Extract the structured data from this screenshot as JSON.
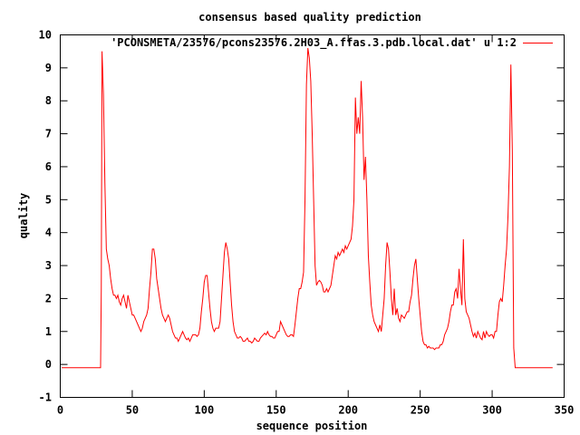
{
  "chart_data": {
    "type": "line",
    "title": "consensus based quality prediction",
    "xlabel": "sequence position",
    "ylabel": "quality",
    "xlim": [
      0,
      350
    ],
    "ylim": [
      -1,
      10
    ],
    "x_ticks": [
      0,
      50,
      100,
      150,
      200,
      250,
      300,
      350
    ],
    "y_ticks": [
      -1,
      0,
      1,
      2,
      3,
      4,
      5,
      6,
      7,
      8,
      9,
      10
    ],
    "grid": false,
    "legend_position": "top-right",
    "series": [
      {
        "name": "'PCONSMETA/23576/pcons23576.2H03_A.ffas.3.pdb.local.dat' u 1:2",
        "color": "#ff0000",
        "points": [
          [
            1,
            -0.1
          ],
          [
            28,
            -0.1
          ],
          [
            28.5,
            2.3
          ],
          [
            29,
            9.5
          ],
          [
            30,
            8.2
          ],
          [
            31,
            5.5
          ],
          [
            32,
            3.5
          ],
          [
            33,
            3.2
          ],
          [
            34,
            3.0
          ],
          [
            35,
            2.6
          ],
          [
            36,
            2.3
          ],
          [
            37,
            2.1
          ],
          [
            38,
            2.1
          ],
          [
            39,
            2.0
          ],
          [
            40,
            2.1
          ],
          [
            41,
            1.9
          ],
          [
            42,
            1.8
          ],
          [
            43,
            2.0
          ],
          [
            44,
            2.1
          ],
          [
            45,
            1.9
          ],
          [
            46,
            1.7
          ],
          [
            47,
            2.1
          ],
          [
            48,
            1.9
          ],
          [
            49,
            1.7
          ],
          [
            50,
            1.5
          ],
          [
            51,
            1.5
          ],
          [
            52,
            1.4
          ],
          [
            53,
            1.3
          ],
          [
            54,
            1.2
          ],
          [
            55,
            1.1
          ],
          [
            56,
            1.0
          ],
          [
            57,
            1.1
          ],
          [
            58,
            1.3
          ],
          [
            59,
            1.4
          ],
          [
            60,
            1.5
          ],
          [
            61,
            1.7
          ],
          [
            62,
            2.3
          ],
          [
            63,
            2.8
          ],
          [
            64,
            3.5
          ],
          [
            65,
            3.5
          ],
          [
            66,
            3.2
          ],
          [
            67,
            2.6
          ],
          [
            68,
            2.3
          ],
          [
            69,
            2.0
          ],
          [
            70,
            1.7
          ],
          [
            71,
            1.5
          ],
          [
            72,
            1.4
          ],
          [
            73,
            1.3
          ],
          [
            74,
            1.4
          ],
          [
            75,
            1.5
          ],
          [
            76,
            1.4
          ],
          [
            77,
            1.2
          ],
          [
            78,
            1.0
          ],
          [
            79,
            0.9
          ],
          [
            80,
            0.8
          ],
          [
            81,
            0.8
          ],
          [
            82,
            0.7
          ],
          [
            83,
            0.8
          ],
          [
            84,
            0.9
          ],
          [
            85,
            1.0
          ],
          [
            86,
            0.9
          ],
          [
            87,
            0.8
          ],
          [
            88,
            0.75
          ],
          [
            89,
            0.8
          ],
          [
            90,
            0.7
          ],
          [
            91,
            0.8
          ],
          [
            92,
            0.9
          ],
          [
            93,
            0.9
          ],
          [
            94,
            0.9
          ],
          [
            95,
            0.85
          ],
          [
            96,
            0.9
          ],
          [
            97,
            1.1
          ],
          [
            98,
            1.6
          ],
          [
            99,
            2.0
          ],
          [
            100,
            2.5
          ],
          [
            101,
            2.7
          ],
          [
            102,
            2.7
          ],
          [
            103,
            2.2
          ],
          [
            104,
            1.7
          ],
          [
            105,
            1.3
          ],
          [
            106,
            1.1
          ],
          [
            107,
            1.0
          ],
          [
            108,
            1.1
          ],
          [
            109,
            1.1
          ],
          [
            110,
            1.1
          ],
          [
            111,
            1.3
          ],
          [
            112,
            2.0
          ],
          [
            113,
            2.7
          ],
          [
            114,
            3.4
          ],
          [
            115,
            3.7
          ],
          [
            116,
            3.5
          ],
          [
            117,
            3.2
          ],
          [
            118,
            2.5
          ],
          [
            119,
            1.8
          ],
          [
            120,
            1.3
          ],
          [
            121,
            1.0
          ],
          [
            122,
            0.9
          ],
          [
            123,
            0.8
          ],
          [
            124,
            0.8
          ],
          [
            125,
            0.85
          ],
          [
            126,
            0.8
          ],
          [
            127,
            0.7
          ],
          [
            128,
            0.7
          ],
          [
            129,
            0.75
          ],
          [
            130,
            0.8
          ],
          [
            131,
            0.7
          ],
          [
            132,
            0.7
          ],
          [
            133,
            0.65
          ],
          [
            134,
            0.7
          ],
          [
            135,
            0.8
          ],
          [
            136,
            0.75
          ],
          [
            137,
            0.7
          ],
          [
            138,
            0.7
          ],
          [
            139,
            0.8
          ],
          [
            140,
            0.85
          ],
          [
            141,
            0.9
          ],
          [
            142,
            0.95
          ],
          [
            143,
            0.9
          ],
          [
            144,
            1.0
          ],
          [
            145,
            0.9
          ],
          [
            146,
            0.85
          ],
          [
            147,
            0.85
          ],
          [
            148,
            0.8
          ],
          [
            149,
            0.8
          ],
          [
            150,
            0.9
          ],
          [
            151,
            1.0
          ],
          [
            152,
            1.0
          ],
          [
            153,
            1.3
          ],
          [
            154,
            1.2
          ],
          [
            155,
            1.1
          ],
          [
            156,
            1.0
          ],
          [
            157,
            0.9
          ],
          [
            158,
            0.85
          ],
          [
            159,
            0.85
          ],
          [
            160,
            0.9
          ],
          [
            161,
            0.9
          ],
          [
            162,
            0.85
          ],
          [
            163,
            1.2
          ],
          [
            164,
            1.6
          ],
          [
            165,
            2.0
          ],
          [
            166,
            2.3
          ],
          [
            167,
            2.3
          ],
          [
            168,
            2.5
          ],
          [
            169,
            2.8
          ],
          [
            170,
            5.0
          ],
          [
            171,
            8.5
          ],
          [
            172,
            9.6
          ],
          [
            173,
            9.3
          ],
          [
            174,
            8.6
          ],
          [
            175,
            7.0
          ],
          [
            176,
            5.0
          ],
          [
            177,
            3.0
          ],
          [
            178,
            2.4
          ],
          [
            179,
            2.5
          ],
          [
            180,
            2.55
          ],
          [
            181,
            2.5
          ],
          [
            182,
            2.4
          ],
          [
            183,
            2.2
          ],
          [
            184,
            2.2
          ],
          [
            185,
            2.3
          ],
          [
            186,
            2.2
          ],
          [
            187,
            2.3
          ],
          [
            188,
            2.4
          ],
          [
            189,
            2.7
          ],
          [
            190,
            3.0
          ],
          [
            191,
            3.3
          ],
          [
            192,
            3.2
          ],
          [
            193,
            3.4
          ],
          [
            194,
            3.3
          ],
          [
            195,
            3.4
          ],
          [
            196,
            3.5
          ],
          [
            197,
            3.4
          ],
          [
            198,
            3.6
          ],
          [
            199,
            3.5
          ],
          [
            200,
            3.6
          ],
          [
            201,
            3.7
          ],
          [
            202,
            3.8
          ],
          [
            203,
            4.2
          ],
          [
            204,
            5.0
          ],
          [
            205,
            8.1
          ],
          [
            206,
            7.0
          ],
          [
            207,
            7.5
          ],
          [
            208,
            7.0
          ],
          [
            209,
            8.6
          ],
          [
            210,
            7.5
          ],
          [
            211,
            5.6
          ],
          [
            212,
            6.3
          ],
          [
            213,
            5.0
          ],
          [
            214,
            3.3
          ],
          [
            215,
            2.5
          ],
          [
            216,
            1.8
          ],
          [
            217,
            1.5
          ],
          [
            218,
            1.3
          ],
          [
            219,
            1.2
          ],
          [
            220,
            1.1
          ],
          [
            221,
            1.0
          ],
          [
            222,
            1.2
          ],
          [
            223,
            1.0
          ],
          [
            224,
            1.5
          ],
          [
            225,
            2.0
          ],
          [
            226,
            3.0
          ],
          [
            227,
            3.7
          ],
          [
            228,
            3.5
          ],
          [
            229,
            2.8
          ],
          [
            230,
            2.0
          ],
          [
            231,
            1.5
          ],
          [
            232,
            2.3
          ],
          [
            233,
            1.5
          ],
          [
            234,
            1.7
          ],
          [
            235,
            1.4
          ],
          [
            236,
            1.3
          ],
          [
            237,
            1.5
          ],
          [
            238,
            1.45
          ],
          [
            239,
            1.4
          ],
          [
            240,
            1.5
          ],
          [
            241,
            1.6
          ],
          [
            242,
            1.6
          ],
          [
            243,
            1.9
          ],
          [
            244,
            2.1
          ],
          [
            245,
            2.6
          ],
          [
            246,
            3.0
          ],
          [
            247,
            3.2
          ],
          [
            248,
            2.6
          ],
          [
            249,
            2.0
          ],
          [
            250,
            1.5
          ],
          [
            251,
            1.0
          ],
          [
            252,
            0.7
          ],
          [
            253,
            0.6
          ],
          [
            254,
            0.6
          ],
          [
            255,
            0.5
          ],
          [
            256,
            0.55
          ],
          [
            257,
            0.5
          ],
          [
            258,
            0.5
          ],
          [
            259,
            0.5
          ],
          [
            260,
            0.45
          ],
          [
            261,
            0.5
          ],
          [
            262,
            0.5
          ],
          [
            263,
            0.5
          ],
          [
            264,
            0.6
          ],
          [
            265,
            0.6
          ],
          [
            266,
            0.7
          ],
          [
            267,
            0.9
          ],
          [
            268,
            1.0
          ],
          [
            269,
            1.1
          ],
          [
            270,
            1.3
          ],
          [
            271,
            1.6
          ],
          [
            272,
            1.8
          ],
          [
            273,
            1.8
          ],
          [
            274,
            2.2
          ],
          [
            275,
            2.3
          ],
          [
            276,
            2.0
          ],
          [
            277,
            2.9
          ],
          [
            278,
            2.3
          ],
          [
            279,
            1.8
          ],
          [
            280,
            3.8
          ],
          [
            281,
            2.0
          ],
          [
            282,
            1.6
          ],
          [
            283,
            1.5
          ],
          [
            284,
            1.4
          ],
          [
            285,
            1.2
          ],
          [
            286,
            1.0
          ],
          [
            287,
            0.85
          ],
          [
            288,
            0.95
          ],
          [
            289,
            0.8
          ],
          [
            290,
            1.0
          ],
          [
            291,
            0.9
          ],
          [
            292,
            0.8
          ],
          [
            293,
            0.75
          ],
          [
            294,
            1.0
          ],
          [
            295,
            0.8
          ],
          [
            296,
            1.0
          ],
          [
            297,
            0.9
          ],
          [
            298,
            0.85
          ],
          [
            299,
            0.9
          ],
          [
            300,
            0.9
          ],
          [
            301,
            0.8
          ],
          [
            302,
            1.0
          ],
          [
            303,
            1.0
          ],
          [
            304,
            1.5
          ],
          [
            305,
            1.9
          ],
          [
            306,
            2.0
          ],
          [
            307,
            1.9
          ],
          [
            308,
            2.4
          ],
          [
            309,
            3.0
          ],
          [
            310,
            3.5
          ],
          [
            311,
            4.5
          ],
          [
            312,
            6.0
          ],
          [
            313,
            9.1
          ],
          [
            314,
            6.5
          ],
          [
            315,
            0.5
          ],
          [
            316,
            -0.1
          ],
          [
            342,
            -0.1
          ]
        ]
      }
    ]
  }
}
